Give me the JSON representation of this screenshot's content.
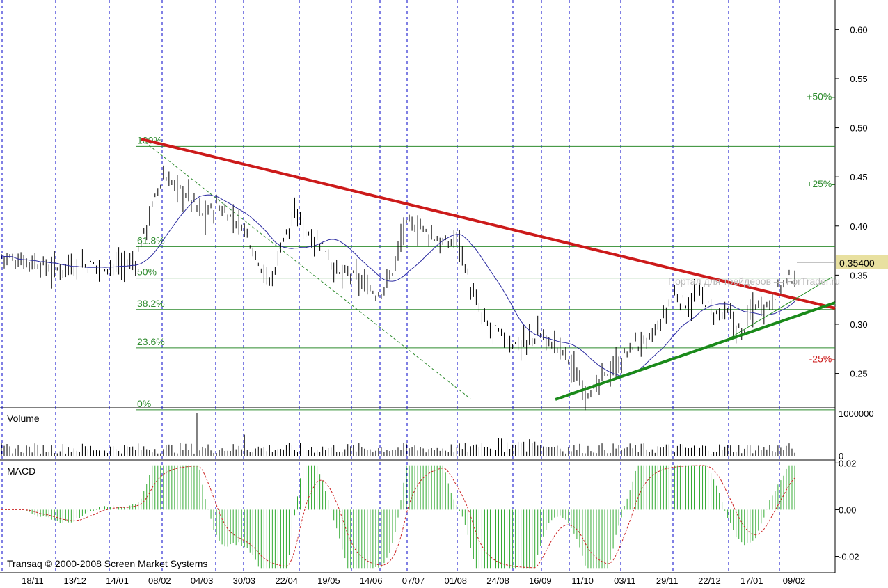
{
  "copyright": "Transaq © 2000-2008 Screen Market Systems",
  "watermark": "Портал для трейдеров — ForTrader.ru",
  "colors": {
    "price_bars": "#000000",
    "moving_average": "#2a2aa0",
    "resistance": "#cc1a1a",
    "support": "#1a8a1a",
    "fib": "#2e8b2e",
    "grid": "#0000c8",
    "macd_hist": "#33aa33",
    "macd_signal": "#cc2222",
    "last_price_bg": "#e8e0a0"
  },
  "chart_data": [
    {
      "type": "bar",
      "panel": "price",
      "price_scale": {
        "ylim": [
          0.215,
          0.63
        ],
        "ticks": [
          "0.60",
          "0.55",
          "0.50",
          "0.45",
          "0.40",
          "0.35",
          "0.30",
          "0.25"
        ]
      },
      "x_labels": [
        "18/11",
        "13/12",
        "14/01",
        "08/02",
        "04/03",
        "30/03",
        "22/04",
        "19/05",
        "14/06",
        "07/07",
        "01/08",
        "24/08",
        "16/09",
        "11/10",
        "03/11",
        "29/11",
        "22/12",
        "17/01",
        "09/02"
      ],
      "last_price": "0.35400",
      "fib_levels": [
        {
          "label": "100%",
          "value": 0.481
        },
        {
          "label": "61.8%",
          "value": 0.379
        },
        {
          "label": "50%",
          "value": 0.347
        },
        {
          "label": "38.2%",
          "value": 0.315
        },
        {
          "label": "23.6%",
          "value": 0.276
        },
        {
          "label": "0%",
          "value": 0.213
        }
      ],
      "target_labels": [
        {
          "label": "+50%-",
          "value": 0.532
        },
        {
          "label": "+25%-",
          "value": 0.443
        },
        {
          "label": "-25%-",
          "value": 0.265
        }
      ],
      "close": [
        0.37,
        0.365,
        0.365,
        0.36,
        0.355,
        0.36,
        0.36,
        0.36,
        0.36,
        0.36,
        0.365,
        0.41,
        0.45,
        0.44,
        0.43,
        0.41,
        0.42,
        0.41,
        0.4,
        0.37,
        0.34,
        0.39,
        0.41,
        0.39,
        0.38,
        0.35,
        0.35,
        0.34,
        0.33,
        0.35,
        0.4,
        0.4,
        0.39,
        0.38,
        0.39,
        0.33,
        0.3,
        0.29,
        0.28,
        0.28,
        0.29,
        0.28,
        0.27,
        0.24,
        0.23,
        0.25,
        0.26,
        0.28,
        0.28,
        0.3,
        0.33,
        0.32,
        0.33,
        0.31,
        0.31,
        0.29,
        0.32,
        0.32,
        0.34,
        0.35
      ]
    },
    {
      "type": "bar",
      "panel": "volume",
      "title": "Volume",
      "ticks": [
        "1000000",
        "0"
      ],
      "ylim": [
        0,
        1000000
      ]
    },
    {
      "type": "bar",
      "panel": "macd",
      "title": "MACD",
      "ticks": [
        "0.02",
        "0.00",
        "-0.02"
      ],
      "ylim": [
        -0.027,
        0.021
      ]
    }
  ]
}
